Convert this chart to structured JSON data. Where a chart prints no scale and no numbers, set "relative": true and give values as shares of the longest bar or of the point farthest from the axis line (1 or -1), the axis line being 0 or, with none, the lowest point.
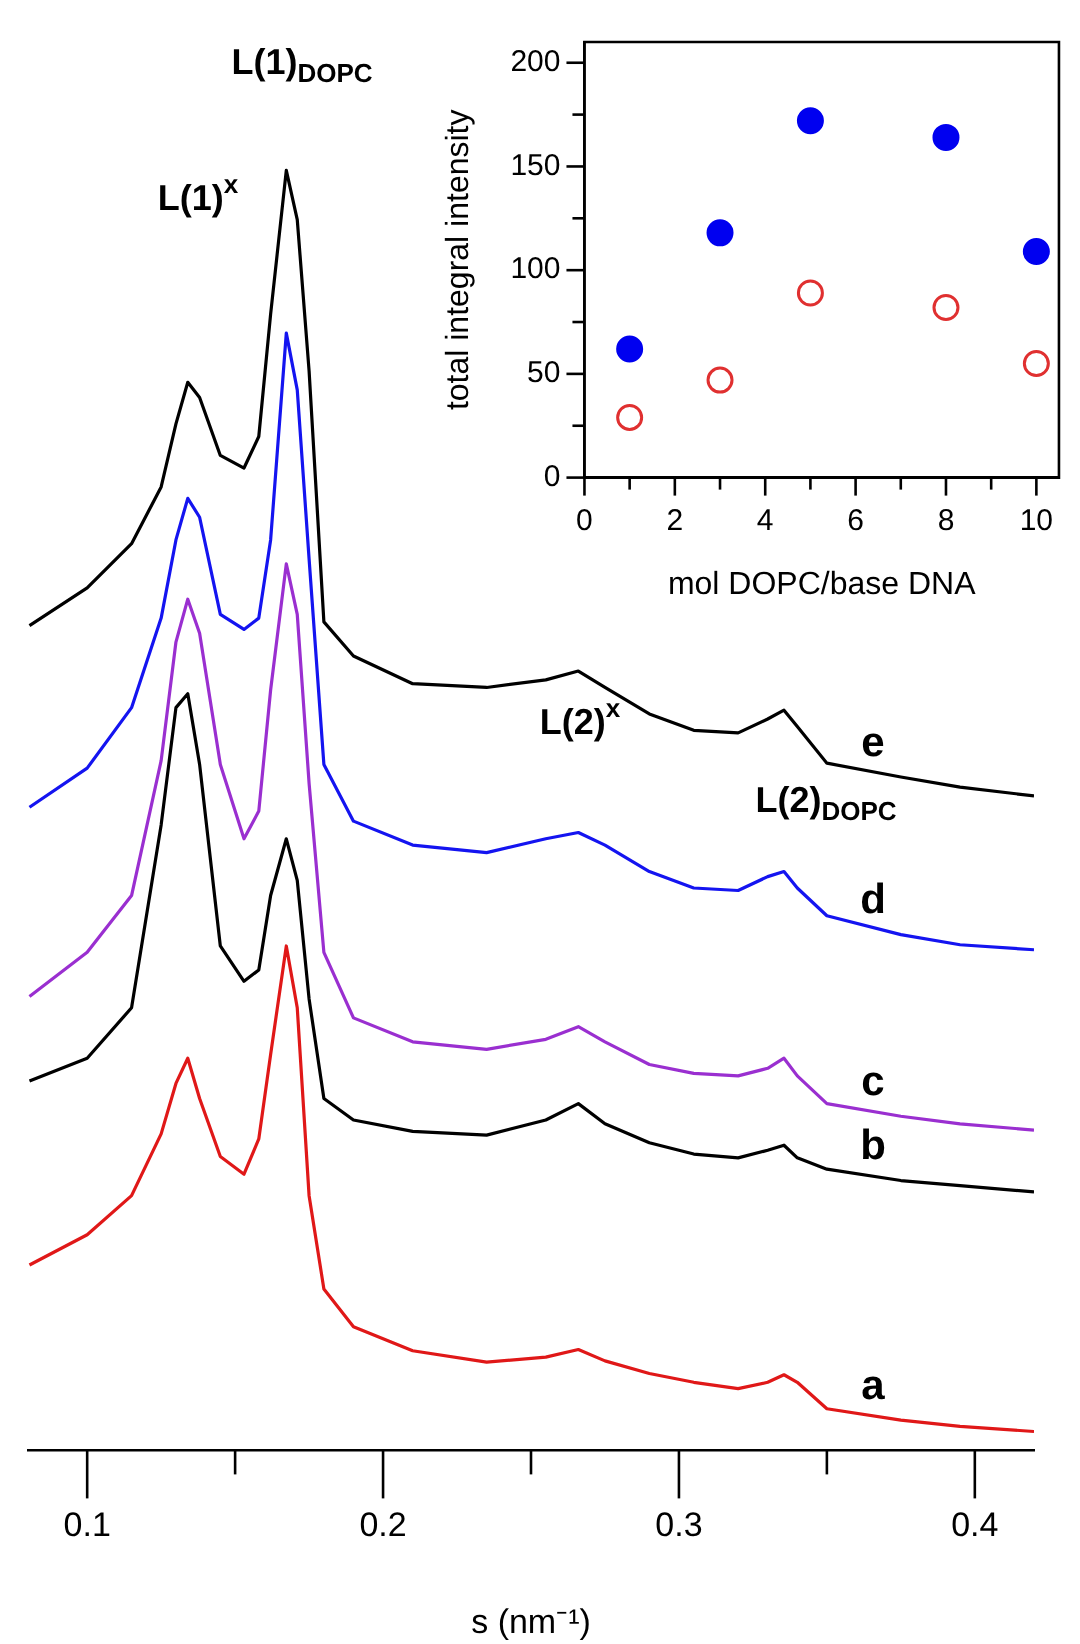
{
  "chart_data": [
    {
      "type": "line",
      "xlabel": "s (nm⁻¹)",
      "relative": true,
      "grid": false,
      "legend": false,
      "marker": "none",
      "line_style": "solid",
      "tick_labels": "x",
      "x": [
        0.0805,
        0.1,
        0.115,
        0.125,
        0.13,
        0.134,
        0.138,
        0.145,
        0.153,
        0.158,
        0.162,
        0.1673,
        0.171,
        0.175,
        0.18,
        0.19,
        0.21,
        0.235,
        0.255,
        0.266,
        0.275,
        0.29,
        0.305,
        0.32,
        0.33,
        0.3355,
        0.34,
        0.35,
        0.375,
        0.395,
        0.42
      ],
      "series": [
        {
          "name": "e",
          "color": "#000000",
          "values": [
            0.639,
            0.669,
            0.704,
            0.749,
            0.799,
            0.832,
            0.82,
            0.774,
            0.764,
            0.789,
            0.886,
            1,
            0.961,
            0.841,
            0.642,
            0.615,
            0.593,
            0.59,
            0.596,
            0.603,
            0.59,
            0.569,
            0.556,
            0.554,
            0.565,
            0.572,
            0.559,
            0.53,
            0.519,
            0.511,
            0.504
          ]
        },
        {
          "name": "d",
          "color": "#1414f0",
          "values": [
            0.495,
            0.526,
            0.574,
            0.645,
            0.707,
            0.74,
            0.725,
            0.648,
            0.636,
            0.645,
            0.707,
            0.871,
            0.826,
            0.692,
            0.529,
            0.484,
            0.465,
            0.459,
            0.47,
            0.475,
            0.465,
            0.444,
            0.431,
            0.429,
            0.44,
            0.444,
            0.431,
            0.409,
            0.394,
            0.386,
            0.382
          ]
        },
        {
          "name": "c",
          "color": "#9a2fd0",
          "values": [
            0.345,
            0.38,
            0.425,
            0.532,
            0.626,
            0.66,
            0.633,
            0.529,
            0.47,
            0.492,
            0.588,
            0.688,
            0.648,
            0.514,
            0.38,
            0.328,
            0.309,
            0.303,
            0.311,
            0.321,
            0.309,
            0.291,
            0.284,
            0.282,
            0.288,
            0.296,
            0.282,
            0.26,
            0.25,
            0.244,
            0.239
          ]
        },
        {
          "name": "b",
          "color": "#000000",
          "values": [
            0.278,
            0.296,
            0.336,
            0.481,
            0.574,
            0.585,
            0.529,
            0.385,
            0.357,
            0.366,
            0.425,
            0.47,
            0.437,
            0.343,
            0.264,
            0.247,
            0.238,
            0.235,
            0.247,
            0.26,
            0.244,
            0.229,
            0.22,
            0.217,
            0.223,
            0.227,
            0.217,
            0.208,
            0.199,
            0.195,
            0.19
          ]
        },
        {
          "name": "a",
          "color": "#e01818",
          "values": [
            0.132,
            0.156,
            0.187,
            0.236,
            0.276,
            0.296,
            0.264,
            0.218,
            0.204,
            0.232,
            0.299,
            0.385,
            0.336,
            0.187,
            0.113,
            0.083,
            0.064,
            0.055,
            0.059,
            0.065,
            0.056,
            0.046,
            0.039,
            0.034,
            0.039,
            0.045,
            0.039,
            0.018,
            0.009,
            0.004,
            0
          ]
        }
      ],
      "xlim": [
        0.08,
        0.42
      ],
      "xticks": [
        0.1,
        {
          "value": 0.15,
          "label": null
        },
        0.2,
        {
          "value": 0.25,
          "label": null
        },
        0.3,
        {
          "value": 0.35,
          "label": null
        },
        0.4
      ],
      "annotations": [
        "L(1)$^{x}$",
        "L(1)$_{DOPC}$",
        "L(2)$^{x}$",
        "L(2)$_{DOPC}$"
      ]
    },
    {
      "type": "scatter",
      "xlabel": "mol DOPC/base DNA",
      "ylabel": "total integral intensity",
      "grid": false,
      "legend": false,
      "marker": "circle",
      "x": [
        1,
        3,
        5,
        8,
        10
      ],
      "series": [
        {
          "color": "#0000f0",
          "values": [
            62,
            118,
            172,
            164,
            109
          ]
        },
        {
          "color": "#e03030",
          "values": [
            29,
            47,
            89,
            82,
            55
          ]
        }
      ],
      "xlim": [
        0,
        10.5
      ],
      "ylim": [
        0,
        210
      ],
      "xticks": [
        0,
        {
          "value": 1,
          "label": null
        },
        2,
        {
          "value": 3,
          "label": null
        },
        4,
        {
          "value": 5,
          "label": null
        },
        6,
        {
          "value": 7,
          "label": null
        },
        8,
        {
          "value": 9,
          "label": null
        },
        10
      ],
      "yticks": [
        0,
        {
          "value": 25,
          "label": null
        },
        50,
        {
          "value": 75,
          "label": null
        },
        100,
        {
          "value": 125,
          "label": null
        },
        150,
        {
          "value": 175,
          "label": null
        },
        200
      ]
    }
  ]
}
